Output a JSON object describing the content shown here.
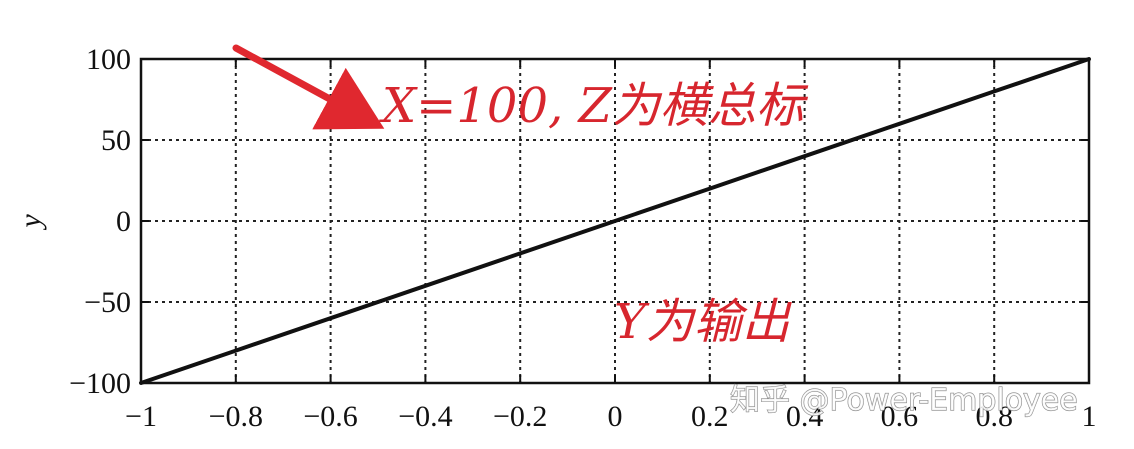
{
  "chart_data": {
    "type": "line",
    "xlabel": "",
    "ylabel": "y",
    "xlim": [
      -1,
      1
    ],
    "ylim": [
      -100,
      100
    ],
    "grid": true,
    "x_ticks": [
      -1,
      -0.8,
      -0.6,
      -0.4,
      -0.2,
      0,
      0.2,
      0.4,
      0.6,
      0.8,
      1
    ],
    "x_tick_labels": [
      "−1",
      "−0.8",
      "−0.6",
      "−0.4",
      "−0.2",
      "0",
      "0.2",
      "0.4",
      "0.6",
      "0.8",
      "1"
    ],
    "y_ticks": [
      -100,
      -50,
      0,
      50,
      100
    ],
    "y_tick_labels": [
      "−100",
      "−50",
      "0",
      "50",
      "100"
    ],
    "series": [
      {
        "x": [
          -1,
          -0.8,
          -0.6,
          -0.4,
          -0.2,
          0,
          0.2,
          0.4,
          0.6,
          0.8,
          1
        ],
        "y": [
          -100,
          -80,
          -60,
          -40,
          -20,
          0,
          20,
          40,
          60,
          80,
          100
        ]
      }
    ],
    "annotations": {
      "top_text": "X=100, Z为横总标",
      "bottom_text": "Y为输出"
    },
    "colors": {
      "line": "#111111",
      "annotation": "#d7262e"
    }
  },
  "watermark": "知乎 @Power-Employee"
}
